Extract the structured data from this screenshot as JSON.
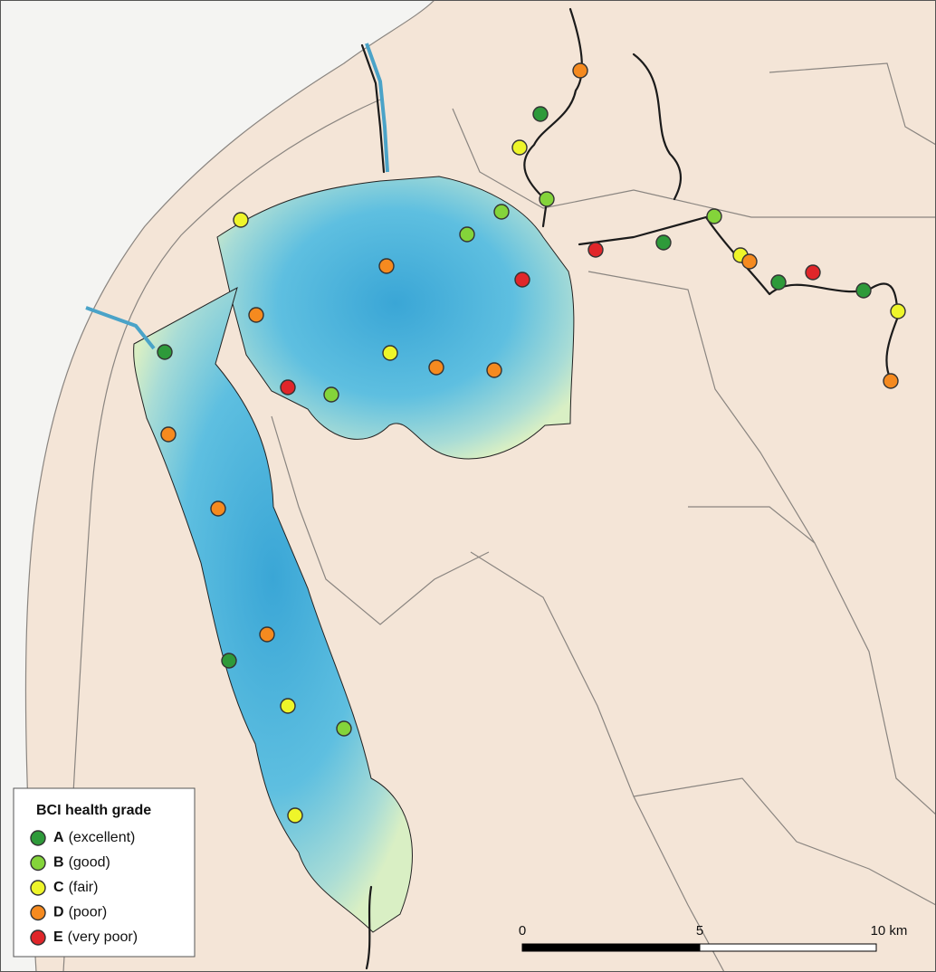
{
  "legend": {
    "title": "BCI health grade",
    "items": [
      {
        "grade": "A",
        "label": "(excellent)",
        "color": "#2e9a3a"
      },
      {
        "grade": "B",
        "label": "(good)",
        "color": "#84d43a"
      },
      {
        "grade": "C",
        "label": "(fair)",
        "color": "#eef52a"
      },
      {
        "grade": "D",
        "label": "(poor)",
        "color": "#f58a1f"
      },
      {
        "grade": "E",
        "label": "(very poor)",
        "color": "#e0262a"
      }
    ]
  },
  "scale_bar": {
    "labels": [
      "0",
      "5",
      "10 km"
    ]
  }
}
